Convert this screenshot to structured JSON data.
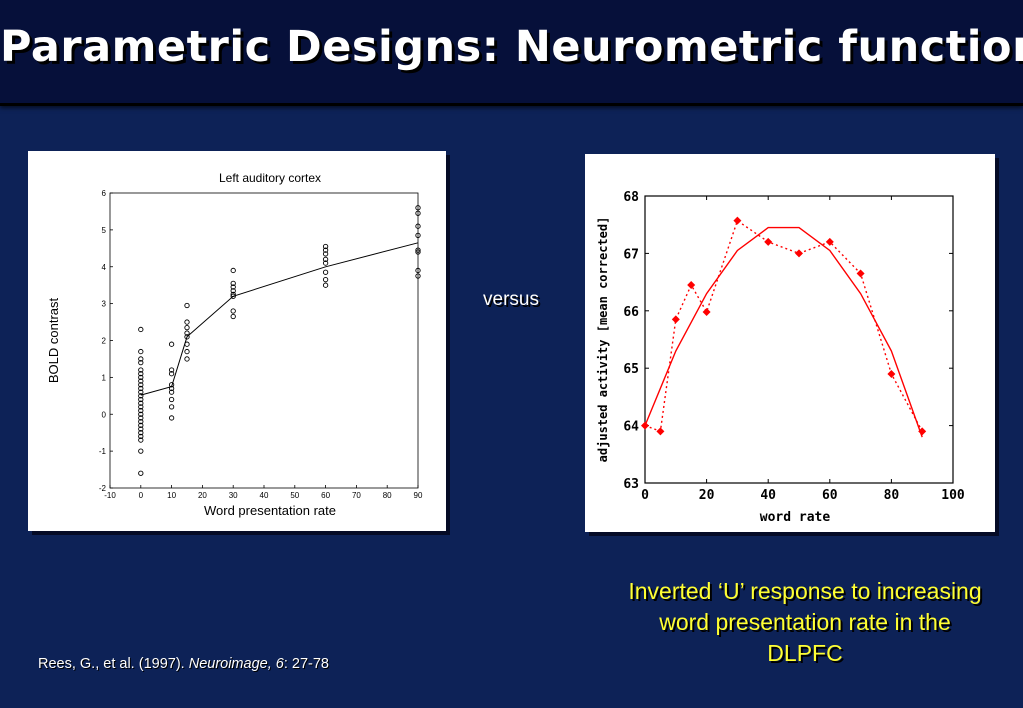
{
  "slide": {
    "title": "Parametric Designs: Neurometric functions",
    "versus": "versus",
    "caption": "Inverted ‘U’ response to increasing word presentation rate in the DLPFC",
    "citation": {
      "authors": "Rees, G., et al. (1997). ",
      "journal": "Neuroimage, 6",
      "pages": ": 27-78"
    }
  },
  "chart_data": [
    {
      "type": "scatter",
      "title": "Left auditory cortex",
      "xlabel": "Word presentation rate",
      "ylabel": "BOLD contrast",
      "xlim": [
        -10,
        90
      ],
      "ylim": [
        -2,
        6
      ],
      "xticks": [
        -10,
        0,
        10,
        20,
        30,
        40,
        50,
        60,
        70,
        80,
        90
      ],
      "yticks": [
        -2,
        -1,
        0,
        1,
        2,
        3,
        4,
        5,
        6
      ],
      "xtick_labels": [
        "-10",
        "0",
        "10",
        "20",
        "30",
        "40",
        "50",
        "60",
        "70",
        "80",
        "90"
      ],
      "ytick_labels": [
        "-2",
        "-1",
        "0",
        "1",
        "2",
        "3",
        "4",
        "5",
        "6"
      ],
      "marker": "open-circle",
      "series": [
        {
          "points": [
            [
              0,
              2.3
            ],
            [
              0,
              1.7
            ],
            [
              0,
              1.5
            ],
            [
              0,
              1.4
            ],
            [
              0,
              1.2
            ],
            [
              0,
              1.1
            ],
            [
              0,
              1.0
            ],
            [
              0,
              0.9
            ],
            [
              0,
              0.8
            ],
            [
              0,
              0.7
            ],
            [
              0,
              0.6
            ],
            [
              0,
              0.5
            ],
            [
              0,
              0.4
            ],
            [
              0,
              0.3
            ],
            [
              0,
              0.2
            ],
            [
              0,
              0.1
            ],
            [
              0,
              0.0
            ],
            [
              0,
              -0.1
            ],
            [
              0,
              -0.2
            ],
            [
              0,
              -0.3
            ],
            [
              0,
              -0.4
            ],
            [
              0,
              -0.5
            ],
            [
              0,
              -0.6
            ],
            [
              0,
              -0.7
            ],
            [
              0,
              -1.0
            ],
            [
              0,
              -1.6
            ],
            [
              10,
              1.9
            ],
            [
              10,
              1.2
            ],
            [
              10,
              1.1
            ],
            [
              10,
              0.8
            ],
            [
              10,
              0.7
            ],
            [
              10,
              0.6
            ],
            [
              10,
              0.4
            ],
            [
              10,
              0.2
            ],
            [
              10,
              -0.1
            ],
            [
              15,
              2.95
            ],
            [
              15,
              2.5
            ],
            [
              15,
              2.35
            ],
            [
              15,
              2.2
            ],
            [
              15,
              2.1
            ],
            [
              15,
              1.9
            ],
            [
              15,
              1.7
            ],
            [
              15,
              1.5
            ],
            [
              30,
              3.9
            ],
            [
              30,
              3.55
            ],
            [
              30,
              3.45
            ],
            [
              30,
              3.35
            ],
            [
              30,
              3.25
            ],
            [
              30,
              3.2
            ],
            [
              30,
              2.8
            ],
            [
              30,
              2.65
            ],
            [
              60,
              4.55
            ],
            [
              60,
              4.45
            ],
            [
              60,
              4.35
            ],
            [
              60,
              4.2
            ],
            [
              60,
              4.1
            ],
            [
              60,
              3.85
            ],
            [
              60,
              3.65
            ],
            [
              60,
              3.5
            ],
            [
              90,
              5.6
            ],
            [
              90,
              5.45
            ],
            [
              90,
              5.1
            ],
            [
              90,
              4.85
            ],
            [
              90,
              4.45
            ],
            [
              90,
              4.4
            ],
            [
              90,
              3.9
            ],
            [
              90,
              3.75
            ]
          ]
        },
        {
          "type": "line",
          "x": [
            0,
            10,
            15,
            30,
            60,
            90
          ],
          "values": [
            0.52,
            0.75,
            2.1,
            3.2,
            4.0,
            4.65
          ]
        }
      ]
    },
    {
      "type": "line",
      "xlabel": "word rate",
      "ylabel": "adjusted activity [mean corrected]",
      "xlim": [
        0,
        100
      ],
      "ylim": [
        63,
        68
      ],
      "xticks": [
        0,
        20,
        40,
        60,
        80,
        100
      ],
      "yticks": [
        63,
        64,
        65,
        66,
        67,
        68
      ],
      "xtick_labels": [
        "0",
        "20",
        "40",
        "60",
        "80",
        "100"
      ],
      "ytick_labels": [
        "63",
        "64",
        "65",
        "66",
        "67",
        "68"
      ],
      "color": "#ff0000",
      "series": [
        {
          "style": "dotted-with-markers",
          "x": [
            0,
            5,
            10,
            15,
            20,
            30,
            40,
            50,
            60,
            70,
            80,
            90
          ],
          "values": [
            64.0,
            63.9,
            65.85,
            66.45,
            65.98,
            67.57,
            67.2,
            67.0,
            67.2,
            66.65,
            64.9,
            63.9
          ]
        },
        {
          "style": "solid-fit",
          "x": [
            0,
            10,
            20,
            30,
            40,
            50,
            60,
            70,
            80,
            90
          ],
          "values": [
            64.0,
            65.3,
            66.3,
            67.05,
            67.45,
            67.45,
            67.05,
            66.3,
            65.3,
            63.8
          ]
        }
      ]
    }
  ]
}
